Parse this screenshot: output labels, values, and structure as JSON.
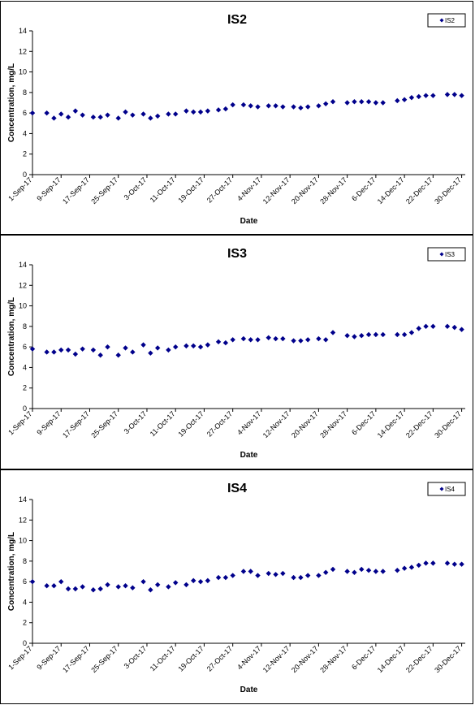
{
  "chart_data": [
    {
      "type": "scatter",
      "title": "IS2",
      "xlabel": "Date",
      "ylabel": "Concentration, mg/L",
      "ylim": [
        0,
        14
      ],
      "yticks": [
        "0",
        "2",
        "4",
        "6",
        "8",
        "10",
        "12",
        "14"
      ],
      "xlim": [
        "2017-09-01",
        "2017-12-31"
      ],
      "xticks": [
        "1-Sep-17",
        "9-Sep-17",
        "17-Sep-17",
        "25-Sep-17",
        "3-Oct-17",
        "11-Oct-17",
        "19-Oct-17",
        "27-Oct-17",
        "4-Nov-17",
        "12-Nov-17",
        "20-Nov-17",
        "28-Nov-17",
        "6-Dec-17",
        "14-Dec-17",
        "22-Dec-17",
        "30-Dec-17"
      ],
      "grid": false,
      "legend": "top-right",
      "marker_color": "#00008B",
      "series": [
        {
          "name": "IS2",
          "points": [
            [
              "2017-09-01",
              6.0
            ],
            [
              "2017-09-05",
              6.0
            ],
            [
              "2017-09-07",
              5.5
            ],
            [
              "2017-09-09",
              5.9
            ],
            [
              "2017-09-11",
              5.6
            ],
            [
              "2017-09-13",
              6.2
            ],
            [
              "2017-09-15",
              5.8
            ],
            [
              "2017-09-18",
              5.6
            ],
            [
              "2017-09-20",
              5.6
            ],
            [
              "2017-09-22",
              5.8
            ],
            [
              "2017-09-25",
              5.5
            ],
            [
              "2017-09-27",
              6.1
            ],
            [
              "2017-09-29",
              5.8
            ],
            [
              "2017-10-02",
              5.9
            ],
            [
              "2017-10-04",
              5.5
            ],
            [
              "2017-10-06",
              5.7
            ],
            [
              "2017-10-09",
              5.9
            ],
            [
              "2017-10-11",
              5.9
            ],
            [
              "2017-10-14",
              6.2
            ],
            [
              "2017-10-16",
              6.1
            ],
            [
              "2017-10-18",
              6.1
            ],
            [
              "2017-10-20",
              6.2
            ],
            [
              "2017-10-23",
              6.3
            ],
            [
              "2017-10-25",
              6.4
            ],
            [
              "2017-10-27",
              6.8
            ],
            [
              "2017-10-30",
              6.8
            ],
            [
              "2017-11-01",
              6.7
            ],
            [
              "2017-11-03",
              6.6
            ],
            [
              "2017-11-06",
              6.7
            ],
            [
              "2017-11-08",
              6.7
            ],
            [
              "2017-11-10",
              6.6
            ],
            [
              "2017-11-13",
              6.6
            ],
            [
              "2017-11-15",
              6.5
            ],
            [
              "2017-11-17",
              6.6
            ],
            [
              "2017-11-20",
              6.7
            ],
            [
              "2017-11-22",
              6.9
            ],
            [
              "2017-11-24",
              7.1
            ],
            [
              "2017-11-28",
              7.0
            ],
            [
              "2017-11-30",
              7.1
            ],
            [
              "2017-12-02",
              7.1
            ],
            [
              "2017-12-04",
              7.1
            ],
            [
              "2017-12-06",
              7.0
            ],
            [
              "2017-12-08",
              7.0
            ],
            [
              "2017-12-12",
              7.2
            ],
            [
              "2017-12-14",
              7.3
            ],
            [
              "2017-12-16",
              7.5
            ],
            [
              "2017-12-18",
              7.6
            ],
            [
              "2017-12-20",
              7.7
            ],
            [
              "2017-12-22",
              7.7
            ],
            [
              "2017-12-26",
              7.8
            ],
            [
              "2017-12-28",
              7.8
            ],
            [
              "2017-12-30",
              7.7
            ]
          ]
        }
      ]
    },
    {
      "type": "scatter",
      "title": "IS3",
      "xlabel": "Date",
      "ylabel": "Concentration, mg/L",
      "ylim": [
        0,
        14
      ],
      "yticks": [
        "0",
        "2",
        "4",
        "6",
        "8",
        "10",
        "12",
        "14"
      ],
      "xlim": [
        "2017-09-01",
        "2017-12-31"
      ],
      "xticks": [
        "1-Sep-17",
        "9-Sep-17",
        "17-Sep-17",
        "25-Sep-17",
        "3-Oct-17",
        "11-Oct-17",
        "19-Oct-17",
        "27-Oct-17",
        "4-Nov-17",
        "12-Nov-17",
        "20-Nov-17",
        "28-Nov-17",
        "6-Dec-17",
        "14-Dec-17",
        "22-Dec-17",
        "30-Dec-17"
      ],
      "grid": false,
      "legend": "top-right",
      "marker_color": "#00008B",
      "series": [
        {
          "name": "IS3",
          "points": [
            [
              "2017-09-01",
              5.8
            ],
            [
              "2017-09-05",
              5.5
            ],
            [
              "2017-09-07",
              5.5
            ],
            [
              "2017-09-09",
              5.7
            ],
            [
              "2017-09-11",
              5.7
            ],
            [
              "2017-09-13",
              5.3
            ],
            [
              "2017-09-15",
              5.8
            ],
            [
              "2017-09-18",
              5.7
            ],
            [
              "2017-09-20",
              5.2
            ],
            [
              "2017-09-22",
              6.0
            ],
            [
              "2017-09-25",
              5.2
            ],
            [
              "2017-09-27",
              5.9
            ],
            [
              "2017-09-29",
              5.5
            ],
            [
              "2017-10-02",
              6.2
            ],
            [
              "2017-10-04",
              5.4
            ],
            [
              "2017-10-06",
              5.9
            ],
            [
              "2017-10-09",
              5.7
            ],
            [
              "2017-10-11",
              6.0
            ],
            [
              "2017-10-14",
              6.1
            ],
            [
              "2017-10-16",
              6.1
            ],
            [
              "2017-10-18",
              6.0
            ],
            [
              "2017-10-20",
              6.2
            ],
            [
              "2017-10-23",
              6.5
            ],
            [
              "2017-10-25",
              6.4
            ],
            [
              "2017-10-27",
              6.7
            ],
            [
              "2017-10-30",
              6.8
            ],
            [
              "2017-11-01",
              6.7
            ],
            [
              "2017-11-03",
              6.7
            ],
            [
              "2017-11-06",
              6.9
            ],
            [
              "2017-11-08",
              6.8
            ],
            [
              "2017-11-10",
              6.8
            ],
            [
              "2017-11-13",
              6.6
            ],
            [
              "2017-11-15",
              6.6
            ],
            [
              "2017-11-17",
              6.7
            ],
            [
              "2017-11-20",
              6.8
            ],
            [
              "2017-11-22",
              6.7
            ],
            [
              "2017-11-24",
              7.4
            ],
            [
              "2017-11-28",
              7.1
            ],
            [
              "2017-11-30",
              7.0
            ],
            [
              "2017-12-02",
              7.1
            ],
            [
              "2017-12-04",
              7.2
            ],
            [
              "2017-12-06",
              7.2
            ],
            [
              "2017-12-08",
              7.2
            ],
            [
              "2017-12-12",
              7.2
            ],
            [
              "2017-12-14",
              7.2
            ],
            [
              "2017-12-16",
              7.4
            ],
            [
              "2017-12-18",
              7.8
            ],
            [
              "2017-12-20",
              8.0
            ],
            [
              "2017-12-22",
              8.0
            ],
            [
              "2017-12-26",
              8.0
            ],
            [
              "2017-12-28",
              7.9
            ],
            [
              "2017-12-30",
              7.7
            ]
          ]
        }
      ]
    },
    {
      "type": "scatter",
      "title": "IS4",
      "xlabel": "Date",
      "ylabel": "Concentration, mg/L",
      "ylim": [
        0,
        14
      ],
      "yticks": [
        "0",
        "2",
        "4",
        "6",
        "8",
        "10",
        "12",
        "14"
      ],
      "xlim": [
        "2017-09-01",
        "2017-12-31"
      ],
      "xticks": [
        "1-Sep-17",
        "9-Sep-17",
        "17-Sep-17",
        "25-Sep-17",
        "3-Oct-17",
        "11-Oct-17",
        "19-Oct-17",
        "27-Oct-17",
        "4-Nov-17",
        "12-Nov-17",
        "20-Nov-17",
        "28-Nov-17",
        "6-Dec-17",
        "14-Dec-17",
        "22-Dec-17",
        "30-Dec-17"
      ],
      "grid": false,
      "legend": "top-right",
      "marker_color": "#00008B",
      "series": [
        {
          "name": "IS4",
          "points": [
            [
              "2017-09-01",
              6.0
            ],
            [
              "2017-09-05",
              5.6
            ],
            [
              "2017-09-07",
              5.6
            ],
            [
              "2017-09-09",
              6.0
            ],
            [
              "2017-09-11",
              5.3
            ],
            [
              "2017-09-13",
              5.3
            ],
            [
              "2017-09-15",
              5.5
            ],
            [
              "2017-09-18",
              5.2
            ],
            [
              "2017-09-20",
              5.3
            ],
            [
              "2017-09-22",
              5.7
            ],
            [
              "2017-09-25",
              5.5
            ],
            [
              "2017-09-27",
              5.6
            ],
            [
              "2017-09-29",
              5.4
            ],
            [
              "2017-10-02",
              6.0
            ],
            [
              "2017-10-04",
              5.2
            ],
            [
              "2017-10-06",
              5.7
            ],
            [
              "2017-10-09",
              5.5
            ],
            [
              "2017-10-11",
              5.9
            ],
            [
              "2017-10-14",
              5.7
            ],
            [
              "2017-10-16",
              6.1
            ],
            [
              "2017-10-18",
              6.0
            ],
            [
              "2017-10-20",
              6.1
            ],
            [
              "2017-10-23",
              6.4
            ],
            [
              "2017-10-25",
              6.4
            ],
            [
              "2017-10-27",
              6.6
            ],
            [
              "2017-10-30",
              7.0
            ],
            [
              "2017-11-01",
              7.0
            ],
            [
              "2017-11-03",
              6.6
            ],
            [
              "2017-11-06",
              6.8
            ],
            [
              "2017-11-08",
              6.7
            ],
            [
              "2017-11-10",
              6.8
            ],
            [
              "2017-11-13",
              6.4
            ],
            [
              "2017-11-15",
              6.4
            ],
            [
              "2017-11-17",
              6.6
            ],
            [
              "2017-11-20",
              6.6
            ],
            [
              "2017-11-22",
              6.9
            ],
            [
              "2017-11-24",
              7.2
            ],
            [
              "2017-11-28",
              7.0
            ],
            [
              "2017-11-30",
              6.9
            ],
            [
              "2017-12-02",
              7.2
            ],
            [
              "2017-12-04",
              7.1
            ],
            [
              "2017-12-06",
              7.0
            ],
            [
              "2017-12-08",
              7.0
            ],
            [
              "2017-12-12",
              7.1
            ],
            [
              "2017-12-14",
              7.3
            ],
            [
              "2017-12-16",
              7.4
            ],
            [
              "2017-12-18",
              7.6
            ],
            [
              "2017-12-20",
              7.8
            ],
            [
              "2017-12-22",
              7.8
            ],
            [
              "2017-12-26",
              7.8
            ],
            [
              "2017-12-28",
              7.7
            ],
            [
              "2017-12-30",
              7.7
            ]
          ]
        }
      ]
    }
  ]
}
